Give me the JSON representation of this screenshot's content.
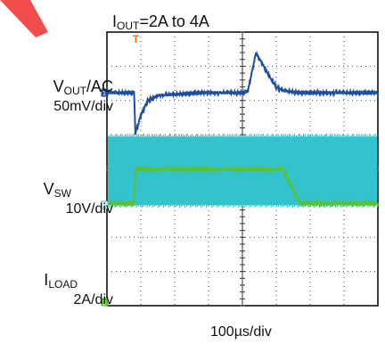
{
  "chart_data": {
    "type": "line",
    "title_prefix": "I",
    "title_sub": "OUT",
    "title_suffix": "=2A to 4A",
    "xlabel": "100µs/div",
    "time_div_us": 100,
    "grid": true,
    "x_units": "µs",
    "x": [
      0,
      80,
      80.5,
      84,
      100,
      120,
      150,
      280,
      360,
      400,
      416,
      440,
      480,
      500,
      520,
      570,
      600,
      680,
      720,
      760,
      800,
      840,
      880
    ],
    "series": [
      {
        "channel": "1",
        "label_main": "V",
        "label_sub": "OUT",
        "label_suffix": "/AC",
        "scale": "50mV/div",
        "color": "#1f4e9e",
        "units_per_div": 50,
        "unit": "mV",
        "values": [
          0,
          0,
          -2,
          -60,
          -33,
          -12,
          -4,
          0,
          0,
          0,
          2,
          58,
          24,
          8,
          3,
          0,
          0,
          0,
          0,
          0,
          0,
          0,
          0
        ]
      },
      {
        "channel": "2",
        "label_main": "V",
        "label_sub": "SW",
        "label_suffix": "",
        "scale": "10V/div",
        "color": "#33c3cc",
        "units_per_div": 10,
        "unit": "V",
        "band_min": 0,
        "band_max": 20
      },
      {
        "channel": "3",
        "label_main": "I",
        "label_sub": "LOAD",
        "label_suffix": "",
        "scale": "2A/div",
        "color": "#5cc12e",
        "units_per_div": 2,
        "unit": "A",
        "values": [
          2,
          2,
          2,
          4,
          4,
          4,
          4,
          4,
          4,
          4,
          4,
          4,
          4,
          4,
          4,
          2,
          2,
          2,
          2,
          2,
          2,
          2,
          2
        ]
      }
    ],
    "trigger_marker": "T",
    "trigger_color": "#f07820",
    "logo_color": "#f03a3a"
  }
}
